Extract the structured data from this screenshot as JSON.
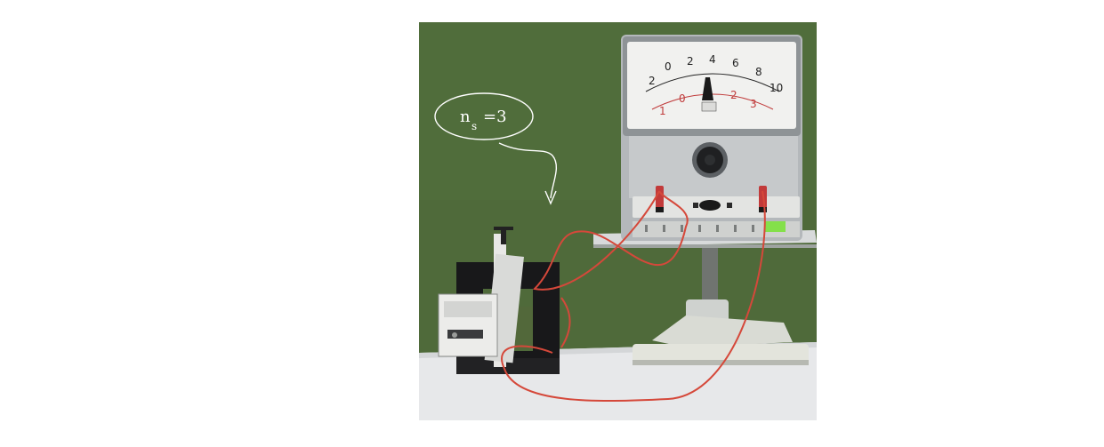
{
  "annotation": {
    "base": "n",
    "subscript": "s",
    "relation": "=3"
  },
  "meter": {
    "upper_scale": [
      "2",
      "0",
      "2",
      "4",
      "6",
      "8",
      "10"
    ],
    "lower_scale": [
      "1",
      "0",
      "1",
      "2",
      "3"
    ]
  },
  "colors": {
    "background_wall": "#4f6a3a",
    "table": "#e7e8ea",
    "wire": "#d5483a",
    "core": "#18181a"
  }
}
